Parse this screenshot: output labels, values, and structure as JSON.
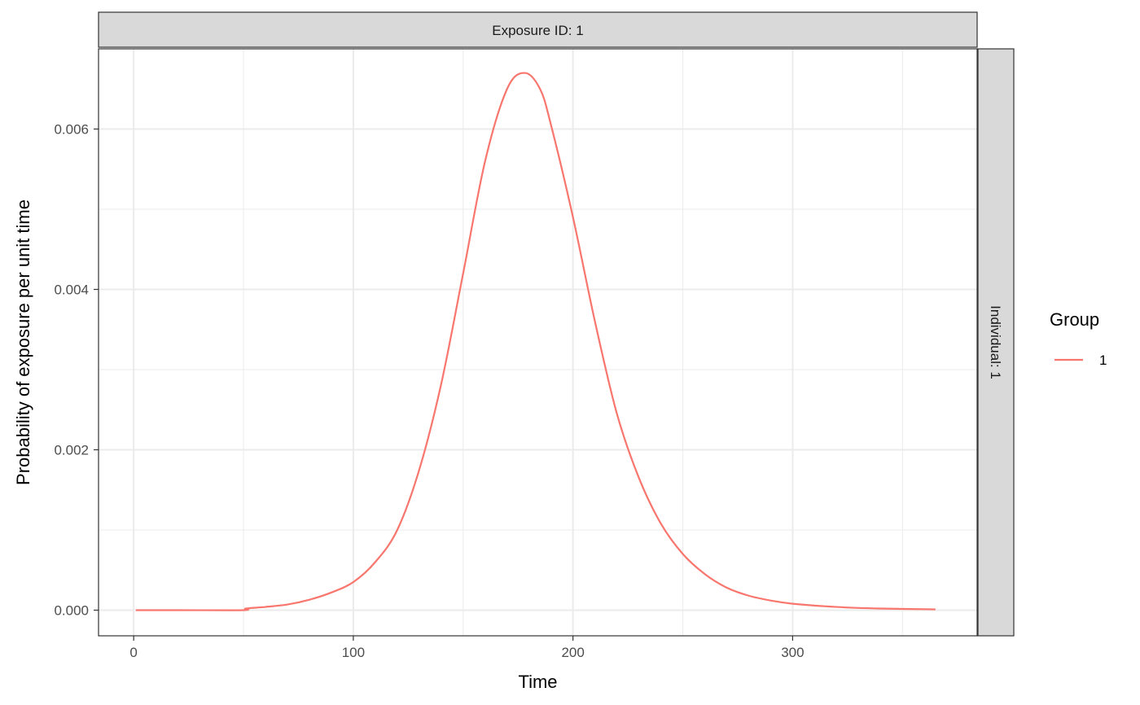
{
  "chart_data": {
    "type": "line",
    "facet_top_label": "Exposure ID: 1",
    "facet_right_label": "Individual: 1",
    "xlabel": "Time",
    "ylabel": "Probability of exposure per unit time",
    "xlim": [
      -16,
      384
    ],
    "ylim": [
      -0.00032,
      0.007
    ],
    "x_ticks": [
      0,
      100,
      200,
      300
    ],
    "x_tick_labels": [
      "0",
      "100",
      "200",
      "300"
    ],
    "y_ticks": [
      0,
      0.002,
      0.004,
      0.006
    ],
    "y_tick_labels": [
      "0.000",
      "0.002",
      "0.004",
      "0.006"
    ],
    "grid": true,
    "legend": {
      "title": "Group",
      "position": "right",
      "entries": [
        {
          "label": "1",
          "color": "#F8766D"
        }
      ]
    },
    "series": [
      {
        "name": "1",
        "color": "#F8766D",
        "x": [
          1,
          20,
          50,
          51,
          60,
          70,
          80,
          90,
          100,
          110,
          120,
          130,
          140,
          150,
          160,
          170,
          178,
          185,
          190,
          200,
          210,
          220,
          230,
          240,
          250,
          260,
          270,
          280,
          290,
          300,
          320,
          340,
          365
        ],
        "y": [
          0,
          0,
          0,
          2e-05,
          4e-05,
          7e-05,
          0.00013,
          0.00022,
          0.00035,
          0.0006,
          0.001,
          0.00175,
          0.00282,
          0.0042,
          0.0056,
          0.0065,
          0.0067,
          0.0065,
          0.00605,
          0.0049,
          0.0036,
          0.00245,
          0.00165,
          0.00108,
          0.0007,
          0.00045,
          0.00028,
          0.00018,
          0.00012,
          8e-05,
          4e-05,
          2e-05,
          1e-05
        ]
      }
    ]
  }
}
